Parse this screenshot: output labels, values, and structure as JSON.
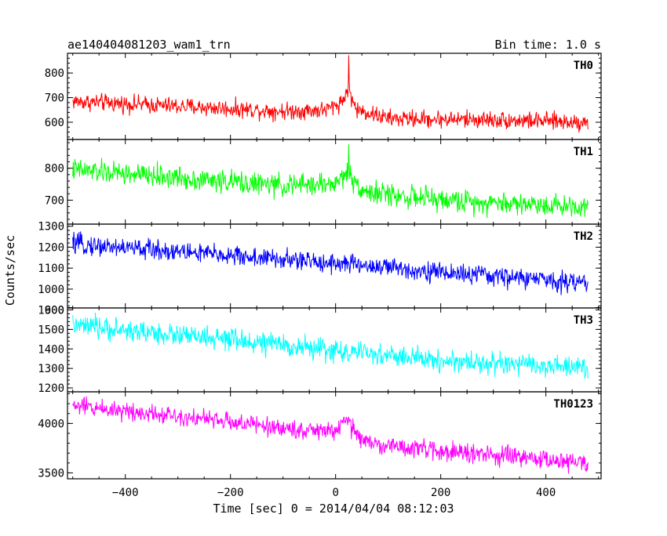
{
  "header": {
    "title": "ae140404081203_wam1_trn",
    "bin_time": "Bin time: 1.0 s"
  },
  "axes": {
    "xlabel": "Time [sec] 0 = 2014/04/04 08:12:03",
    "ylabel": "Counts/sec"
  },
  "chart_data": {
    "type": "line",
    "x_range": [
      -510,
      505
    ],
    "x_ticks": [
      -400,
      -200,
      0,
      200,
      400
    ],
    "time_start": -500,
    "time_end": 480,
    "bin": 1.0,
    "panels": [
      {
        "name": "TH0",
        "color": "#ff0000",
        "ylim": [
          530,
          880
        ],
        "ticks": [
          600,
          700,
          800
        ],
        "trend": [
          [
            -500,
            685
          ],
          [
            -300,
            665
          ],
          [
            -100,
            645
          ],
          [
            -20,
            650
          ],
          [
            0,
            668
          ],
          [
            15,
            690
          ],
          [
            22,
            735
          ],
          [
            26,
            740
          ],
          [
            30,
            700
          ],
          [
            40,
            650
          ],
          [
            60,
            640
          ],
          [
            100,
            615
          ],
          [
            300,
            610
          ],
          [
            480,
            600
          ]
        ],
        "noise": 28,
        "peak": [
          25,
          872
        ]
      },
      {
        "name": "TH1",
        "color": "#00ff00",
        "ylim": [
          625,
          890
        ],
        "ticks": [
          700,
          800
        ],
        "trend": [
          [
            -500,
            795
          ],
          [
            -300,
            770
          ],
          [
            -100,
            745
          ],
          [
            0,
            752
          ],
          [
            15,
            775
          ],
          [
            25,
            800
          ],
          [
            30,
            765
          ],
          [
            60,
            725
          ],
          [
            200,
            700
          ],
          [
            480,
            680
          ]
        ],
        "noise": 28,
        "peak": [
          25,
          875
        ]
      },
      {
        "name": "TH2",
        "color": "#0000ff",
        "ylim": [
          910,
          1310
        ],
        "ticks": [
          900,
          1000,
          1100,
          1200,
          1300
        ],
        "trend": [
          [
            -500,
            1215
          ],
          [
            -300,
            1180
          ],
          [
            -100,
            1140
          ],
          [
            0,
            1125
          ],
          [
            200,
            1080
          ],
          [
            480,
            1030
          ]
        ],
        "noise": 38,
        "peak": null
      },
      {
        "name": "TH3",
        "color": "#00ffff",
        "ylim": [
          1180,
          1610
        ],
        "ticks": [
          1200,
          1300,
          1400,
          1500,
          1600
        ],
        "trend": [
          [
            -500,
            1520
          ],
          [
            -300,
            1470
          ],
          [
            -100,
            1420
          ],
          [
            0,
            1390
          ],
          [
            200,
            1340
          ],
          [
            480,
            1300
          ]
        ],
        "noise": 45,
        "peak": null
      },
      {
        "name": "TH0123",
        "color": "#ff00ff",
        "ylim": [
          3440,
          4320
        ],
        "ticks": [
          3500,
          4000
        ],
        "trend": [
          [
            -500,
            4180
          ],
          [
            -300,
            4080
          ],
          [
            -100,
            3950
          ],
          [
            -20,
            3920
          ],
          [
            0,
            3930
          ],
          [
            15,
            3990
          ],
          [
            25,
            4040
          ],
          [
            30,
            3960
          ],
          [
            60,
            3800
          ],
          [
            200,
            3720
          ],
          [
            480,
            3600
          ]
        ],
        "noise": 75,
        "peak": null
      }
    ]
  }
}
